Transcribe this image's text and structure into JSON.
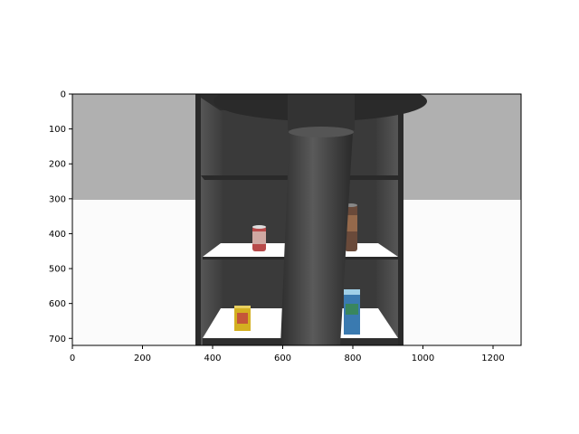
{
  "figure": {
    "background": "#ffffff",
    "axis_color": "#000000"
  },
  "image_axes": {
    "x_range": [
      0,
      1280
    ],
    "y_range": [
      0,
      720
    ],
    "y_inverted": true,
    "x_ticks": [
      0,
      200,
      400,
      600,
      800,
      1000,
      1200
    ],
    "y_ticks": [
      0,
      100,
      200,
      300,
      400,
      500,
      600,
      700
    ],
    "x_tick_labels": [
      "0",
      "200",
      "400",
      "600",
      "800",
      "1000",
      "1200"
    ],
    "y_tick_labels": [
      "0",
      "100",
      "200",
      "300",
      "400",
      "500",
      "600",
      "700"
    ]
  },
  "scene": {
    "description_colors": {
      "wall": "#b0b0b0",
      "floor": "#fafafa",
      "shelf_dark": "#3a3a3a",
      "shelf_board": "#ffffff",
      "pillar": "#4a4a4a"
    },
    "objects": [
      {
        "name": "red-can",
        "kind": "can",
        "color": "#b84a4a"
      },
      {
        "name": "brown-can",
        "kind": "can",
        "color": "#6a4a3a"
      },
      {
        "name": "yellow-box",
        "kind": "box",
        "color": "#d4b020"
      },
      {
        "name": "blue-box",
        "kind": "box",
        "color": "#3a7ab0"
      }
    ]
  }
}
